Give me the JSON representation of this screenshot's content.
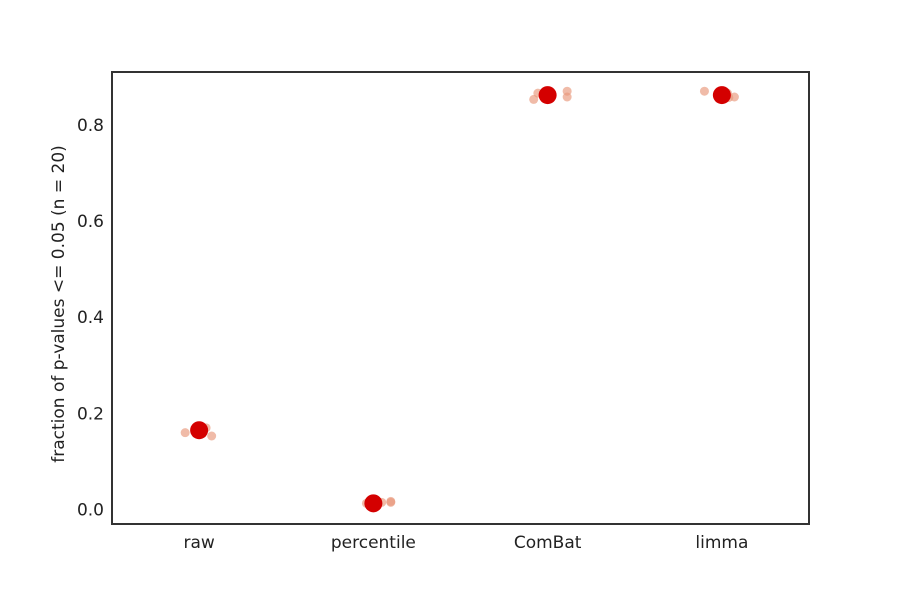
{
  "chart_data": {
    "type": "scatter",
    "title": "",
    "xlabel": "",
    "ylabel": "fraction of p-values <= 0.05 (n = 20)",
    "categories": [
      "raw",
      "percentile",
      "ComBat",
      "limma"
    ],
    "ylim": [
      -0.03,
      0.91
    ],
    "yticks": [
      "0.0",
      "0.2",
      "0.4",
      "0.6",
      "0.8"
    ],
    "grid": false,
    "series": [
      {
        "role": "replicates",
        "color": "#e8967a",
        "points": [
          {
            "category": "raw",
            "jitter": -0.2,
            "y": 0.16
          },
          {
            "category": "raw",
            "jitter": -0.02,
            "y": 0.17
          },
          {
            "category": "raw",
            "jitter": 0.05,
            "y": 0.165
          },
          {
            "category": "raw",
            "jitter": 0.1,
            "y": 0.17
          },
          {
            "category": "raw",
            "jitter": 0.18,
            "y": 0.153
          },
          {
            "category": "percentile",
            "jitter": -0.1,
            "y": 0.013
          },
          {
            "category": "percentile",
            "jitter": 0.0,
            "y": 0.012
          },
          {
            "category": "percentile",
            "jitter": 0.12,
            "y": 0.015
          },
          {
            "category": "percentile",
            "jitter": 0.25,
            "y": 0.015
          },
          {
            "category": "percentile",
            "jitter": 0.25,
            "y": 0.017
          },
          {
            "category": "ComBat",
            "jitter": -0.2,
            "y": 0.853
          },
          {
            "category": "ComBat",
            "jitter": -0.14,
            "y": 0.866
          },
          {
            "category": "ComBat",
            "jitter": 0.0,
            "y": 0.86
          },
          {
            "category": "ComBat",
            "jitter": 0.28,
            "y": 0.858
          },
          {
            "category": "ComBat",
            "jitter": 0.28,
            "y": 0.87
          },
          {
            "category": "limma",
            "jitter": -0.25,
            "y": 0.87
          },
          {
            "category": "limma",
            "jitter": 0.0,
            "y": 0.862
          },
          {
            "category": "limma",
            "jitter": 0.08,
            "y": 0.866
          },
          {
            "category": "limma",
            "jitter": 0.1,
            "y": 0.857
          },
          {
            "category": "limma",
            "jitter": 0.18,
            "y": 0.858
          }
        ]
      },
      {
        "role": "mean",
        "color": "#d40000",
        "points": [
          {
            "category": "raw",
            "y": 0.165
          },
          {
            "category": "percentile",
            "y": 0.013
          },
          {
            "category": "ComBat",
            "y": 0.862
          },
          {
            "category": "limma",
            "y": 0.862
          }
        ]
      }
    ]
  }
}
